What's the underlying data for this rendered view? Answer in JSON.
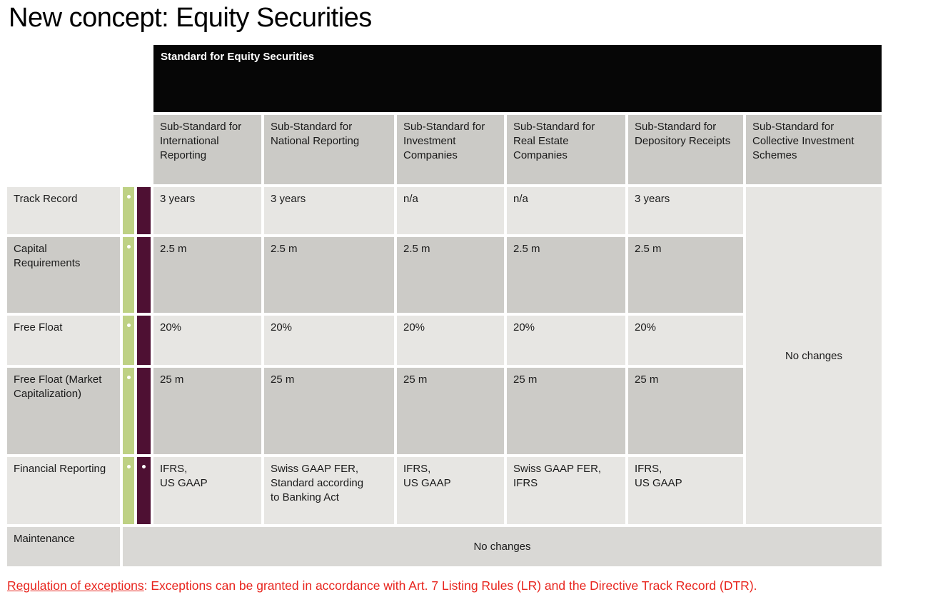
{
  "title": "New concept: Equity Securities",
  "table": {
    "main_header": "Standard for Equity Securities",
    "column_headers": [
      "Sub-Standard for International Reporting",
      "Sub-Standard for National Reporting",
      "Sub-Standard for Investment Companies",
      "Sub-Standard for Real Estate Companies",
      "Sub-Standard for Depository Receipts",
      "Sub-Standard for Collective Investment Schemes"
    ],
    "rows": [
      {
        "label": "Track Record",
        "values": [
          "3 years",
          "3 years",
          "n/a",
          "n/a",
          "3 years"
        ]
      },
      {
        "label": "Capital Requirements",
        "values": [
          "2.5 m",
          "2.5 m",
          "2.5 m",
          "2.5 m",
          "2.5 m"
        ]
      },
      {
        "label": "Free Float",
        "values": [
          "20%",
          "20%",
          "20%",
          "20%",
          "20%"
        ]
      },
      {
        "label": "Free Float (Market Capitalization)",
        "values": [
          "25 m",
          "25 m",
          "25 m",
          "25 m",
          "25 m"
        ]
      },
      {
        "label": "Financial Reporting",
        "values": [
          "IFRS,\nUS GAAP",
          "Swiss GAAP FER,\nStandard according\nto Banking Act",
          "IFRS,\nUS GAAP",
          "Swiss GAAP FER,\nIFRS",
          "IFRS,\nUS GAAP"
        ]
      }
    ],
    "collective_no_changes": "No changes",
    "maintenance_label": "Maintenance",
    "maintenance_value": "No changes"
  },
  "footnote": {
    "lead": "Regulation of exceptions",
    "rest": ": Exceptions can be granted in accordance with Art. 7 Listing Rules (LR) and the Directive Track Record (DTR)."
  },
  "colors": {
    "header_bar": "#060606",
    "green_stripe": "#bed184",
    "maroon_stripe": "#4e1033",
    "row_light": "#e7e6e3",
    "row_dark": "#cccbc7",
    "maintenance_row": "#d9d8d5",
    "footnote_red": "#e8251e"
  }
}
